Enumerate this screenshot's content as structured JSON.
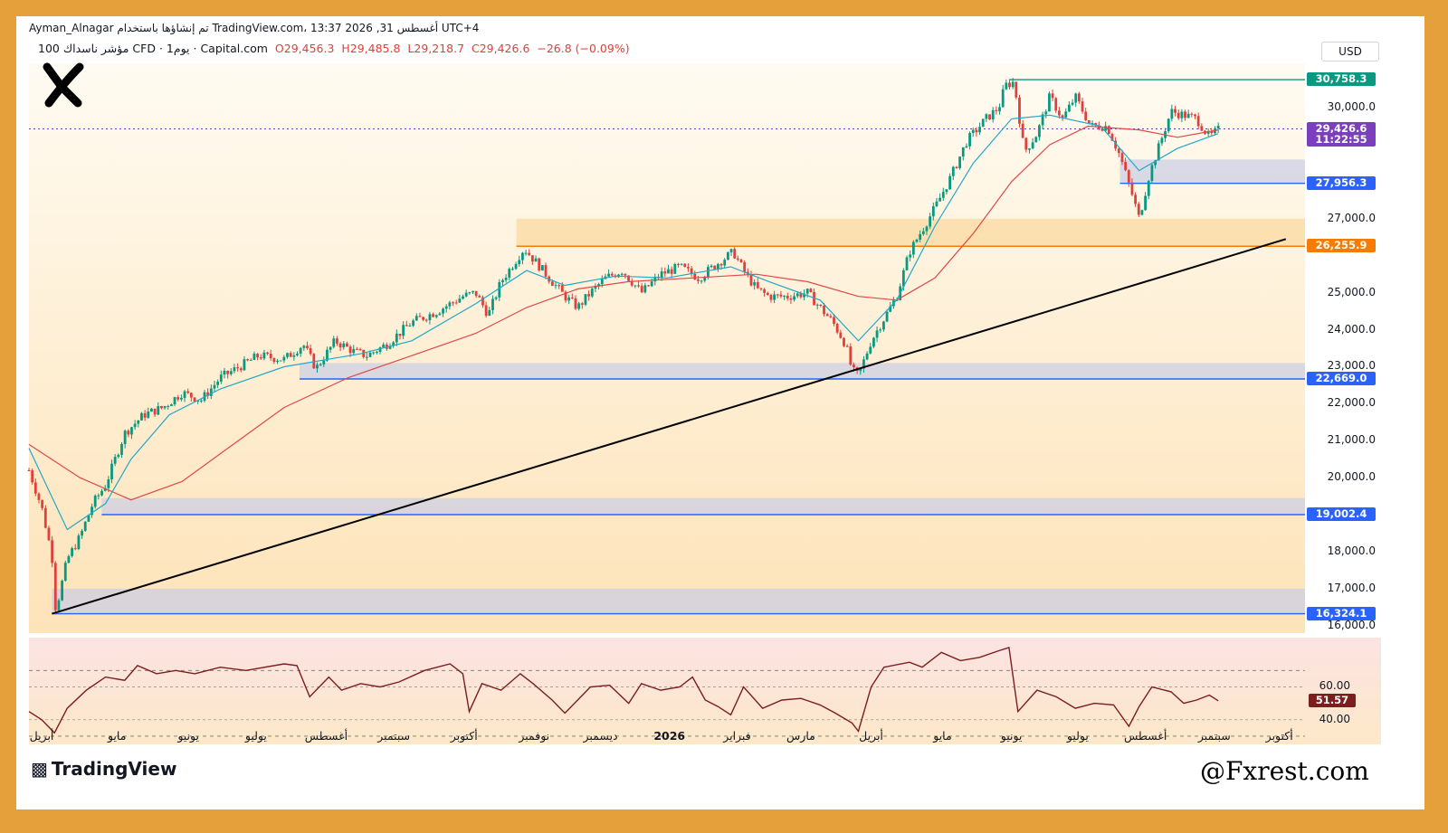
{
  "header": {
    "line1": "Ayman_Alnagar تم إنشاؤها باستخدام TradingView.com، 13:37 2026 ,31 أغسطس UTC+4",
    "symbol": "100 مؤشر ناسداك CFD · 1يوم · Capital.com",
    "open": "O29,456.3",
    "high": "H29,485.8",
    "low": "L29,218.7",
    "close": "C29,426.6",
    "change": "−26.8 (−0.09%)"
  },
  "currency": "USD",
  "footer": {
    "brand": "TradingView",
    "watermark": "@Fxrest.com"
  },
  "price_labels": [
    {
      "text": "30,758.3",
      "value": 30758.3,
      "color": "#089981"
    },
    {
      "text": "29,426.6",
      "value": 29426.6,
      "color": "#7b3fbd"
    },
    {
      "text": "11:22:55",
      "value": 29426.6,
      "color": "#7b3fbd",
      "sub": true
    },
    {
      "text": "27,956.3",
      "value": 27956.3,
      "color": "#2962ff"
    },
    {
      "text": "26,255.9",
      "value": 26255.9,
      "color": "#f57c00"
    },
    {
      "text": "22,669.0",
      "value": 22669.0,
      "color": "#2962ff"
    },
    {
      "text": "19,002.4",
      "value": 19002.4,
      "color": "#2962ff"
    },
    {
      "text": "16,324.1",
      "value": 16324.1,
      "color": "#2962ff"
    }
  ],
  "rsi_labels": [
    {
      "text": "60.00",
      "value": 60
    },
    {
      "text": "51.57",
      "value": 51.57,
      "badge": true
    },
    {
      "text": "40.00",
      "value": 40
    }
  ],
  "colors": {
    "up": "#089981",
    "down": "#e0403c",
    "ema_fast": "#22a7c9",
    "ema_slow": "#e04848",
    "rsi": "#7a1e1e",
    "frame": "#e5a03c"
  },
  "chart_data": {
    "type": "candlestick",
    "title": "100 مؤشر ناسداك CFD · 1يوم · Capital.com",
    "y_ticks": [
      16000,
      17000,
      18000,
      20000,
      21000,
      22000,
      23000,
      24000,
      25000,
      27000,
      30000
    ],
    "y_tick_labels": [
      "16,000.0",
      "17,000.0",
      "18,000.0",
      "20,000.0",
      "21,000.0",
      "22,000.0",
      "23,000.0",
      "24,000.0",
      "25,000.0",
      "27,000.0",
      "30,000.0"
    ],
    "ylim": [
      15800,
      31200
    ],
    "x_ticks": [
      {
        "label": "أبريل",
        "year_offset": 0,
        "t": 0.0
      },
      {
        "label": "مايو",
        "t": 0.059
      },
      {
        "label": "يونيو",
        "t": 0.115
      },
      {
        "label": "يوليو",
        "t": 0.168
      },
      {
        "label": "أغسطس",
        "t": 0.223
      },
      {
        "label": "سبتمبر",
        "t": 0.276
      },
      {
        "label": "أكتوبر",
        "t": 0.331
      },
      {
        "label": "نوفمبر",
        "t": 0.386
      },
      {
        "label": "ديسمبر",
        "t": 0.438
      },
      {
        "label": "2026",
        "t": 0.492,
        "bold": true
      },
      {
        "label": "فبراير",
        "t": 0.545
      },
      {
        "label": "مارس",
        "t": 0.595
      },
      {
        "label": "أبريل",
        "t": 0.65
      },
      {
        "label": "مايو",
        "t": 0.706
      },
      {
        "label": "يونيو",
        "t": 0.76
      },
      {
        "label": "يوليو",
        "t": 0.812
      },
      {
        "label": "أغسطس",
        "t": 0.865
      },
      {
        "label": "سبتمبر",
        "t": 0.919
      },
      {
        "label": "أكتوبر",
        "t": 0.97
      }
    ],
    "price_path": [
      [
        0.0,
        20200
      ],
      [
        0.01,
        19200
      ],
      [
        0.018,
        17900
      ],
      [
        0.021,
        16400
      ],
      [
        0.03,
        17800
      ],
      [
        0.04,
        18400
      ],
      [
        0.05,
        19300
      ],
      [
        0.06,
        19800
      ],
      [
        0.075,
        21200
      ],
      [
        0.09,
        21700
      ],
      [
        0.105,
        21900
      ],
      [
        0.12,
        22300
      ],
      [
        0.135,
        22100
      ],
      [
        0.15,
        22700
      ],
      [
        0.165,
        23000
      ],
      [
        0.18,
        23300
      ],
      [
        0.2,
        23200
      ],
      [
        0.215,
        23600
      ],
      [
        0.225,
        22950
      ],
      [
        0.24,
        23700
      ],
      [
        0.255,
        23400
      ],
      [
        0.265,
        23300
      ],
      [
        0.28,
        23600
      ],
      [
        0.3,
        24200
      ],
      [
        0.32,
        24500
      ],
      [
        0.34,
        24900
      ],
      [
        0.35,
        25000
      ],
      [
        0.36,
        24400
      ],
      [
        0.37,
        25300
      ],
      [
        0.38,
        25800
      ],
      [
        0.388,
        26200
      ],
      [
        0.398,
        25800
      ],
      [
        0.41,
        25300
      ],
      [
        0.42,
        24900
      ],
      [
        0.43,
        24600
      ],
      [
        0.44,
        25000
      ],
      [
        0.452,
        25400
      ],
      [
        0.465,
        25600
      ],
      [
        0.48,
        25000
      ],
      [
        0.495,
        25500
      ],
      [
        0.51,
        25700
      ],
      [
        0.525,
        25400
      ],
      [
        0.54,
        25800
      ],
      [
        0.552,
        26100
      ],
      [
        0.56,
        25600
      ],
      [
        0.57,
        25100
      ],
      [
        0.58,
        24900
      ],
      [
        0.595,
        24900
      ],
      [
        0.61,
        25000
      ],
      [
        0.62,
        24600
      ],
      [
        0.63,
        24200
      ],
      [
        0.64,
        23600
      ],
      [
        0.645,
        22900
      ],
      [
        0.65,
        22750
      ],
      [
        0.66,
        23700
      ],
      [
        0.67,
        24300
      ],
      [
        0.68,
        24900
      ],
      [
        0.69,
        26100
      ],
      [
        0.7,
        26700
      ],
      [
        0.71,
        27300
      ],
      [
        0.722,
        28100
      ],
      [
        0.735,
        29100
      ],
      [
        0.75,
        29700
      ],
      [
        0.76,
        30000
      ],
      [
        0.765,
        30600
      ],
      [
        0.772,
        30700
      ],
      [
        0.78,
        28800
      ],
      [
        0.79,
        29300
      ],
      [
        0.8,
        30300
      ],
      [
        0.81,
        29700
      ],
      [
        0.82,
        30300
      ],
      [
        0.832,
        29500
      ],
      [
        0.845,
        29500
      ],
      [
        0.855,
        28700
      ],
      [
        0.865,
        27600
      ],
      [
        0.87,
        27000
      ],
      [
        0.878,
        28200
      ],
      [
        0.885,
        28900
      ],
      [
        0.895,
        29900
      ],
      [
        0.905,
        29800
      ],
      [
        0.915,
        29700
      ],
      [
        0.925,
        29200
      ],
      [
        0.932,
        29400
      ]
    ],
    "ema_fast_path": [
      [
        0.0,
        20800
      ],
      [
        0.03,
        18600
      ],
      [
        0.06,
        19300
      ],
      [
        0.08,
        20500
      ],
      [
        0.11,
        21700
      ],
      [
        0.15,
        22400
      ],
      [
        0.2,
        23000
      ],
      [
        0.26,
        23350
      ],
      [
        0.3,
        23700
      ],
      [
        0.35,
        24700
      ],
      [
        0.39,
        25600
      ],
      [
        0.42,
        25200
      ],
      [
        0.46,
        25450
      ],
      [
        0.5,
        25400
      ],
      [
        0.55,
        25700
      ],
      [
        0.58,
        25300
      ],
      [
        0.62,
        24800
      ],
      [
        0.65,
        23700
      ],
      [
        0.68,
        24800
      ],
      [
        0.71,
        26800
      ],
      [
        0.74,
        28500
      ],
      [
        0.77,
        29700
      ],
      [
        0.8,
        29800
      ],
      [
        0.84,
        29500
      ],
      [
        0.87,
        28300
      ],
      [
        0.9,
        28900
      ],
      [
        0.932,
        29300
      ]
    ],
    "ema_slow_path": [
      [
        0.0,
        20900
      ],
      [
        0.04,
        20000
      ],
      [
        0.08,
        19400
      ],
      [
        0.12,
        19900
      ],
      [
        0.16,
        20900
      ],
      [
        0.2,
        21900
      ],
      [
        0.25,
        22700
      ],
      [
        0.3,
        23300
      ],
      [
        0.35,
        23900
      ],
      [
        0.39,
        24600
      ],
      [
        0.43,
        25100
      ],
      [
        0.47,
        25300
      ],
      [
        0.52,
        25400
      ],
      [
        0.57,
        25500
      ],
      [
        0.61,
        25300
      ],
      [
        0.65,
        24900
      ],
      [
        0.68,
        24800
      ],
      [
        0.71,
        25400
      ],
      [
        0.74,
        26600
      ],
      [
        0.77,
        28000
      ],
      [
        0.8,
        29000
      ],
      [
        0.83,
        29500
      ],
      [
        0.87,
        29400
      ],
      [
        0.9,
        29200
      ],
      [
        0.932,
        29400
      ]
    ],
    "rsi_path": [
      [
        0.0,
        45
      ],
      [
        0.01,
        40
      ],
      [
        0.02,
        32
      ],
      [
        0.03,
        47
      ],
      [
        0.045,
        58
      ],
      [
        0.06,
        66
      ],
      [
        0.075,
        64
      ],
      [
        0.085,
        73
      ],
      [
        0.1,
        68
      ],
      [
        0.115,
        70
      ],
      [
        0.13,
        68
      ],
      [
        0.15,
        72
      ],
      [
        0.17,
        70
      ],
      [
        0.2,
        74
      ],
      [
        0.21,
        73
      ],
      [
        0.22,
        54
      ],
      [
        0.235,
        66
      ],
      [
        0.245,
        58
      ],
      [
        0.26,
        62
      ],
      [
        0.275,
        60
      ],
      [
        0.29,
        63
      ],
      [
        0.31,
        70
      ],
      [
        0.33,
        74
      ],
      [
        0.34,
        68
      ],
      [
        0.345,
        45
      ],
      [
        0.355,
        62
      ],
      [
        0.37,
        58
      ],
      [
        0.385,
        68
      ],
      [
        0.395,
        62
      ],
      [
        0.41,
        52
      ],
      [
        0.42,
        44
      ],
      [
        0.43,
        52
      ],
      [
        0.44,
        60
      ],
      [
        0.455,
        61
      ],
      [
        0.47,
        50
      ],
      [
        0.48,
        62
      ],
      [
        0.495,
        58
      ],
      [
        0.51,
        60
      ],
      [
        0.52,
        66
      ],
      [
        0.53,
        52
      ],
      [
        0.54,
        48
      ],
      [
        0.55,
        43
      ],
      [
        0.56,
        60
      ],
      [
        0.575,
        47
      ],
      [
        0.59,
        52
      ],
      [
        0.605,
        53
      ],
      [
        0.62,
        49
      ],
      [
        0.632,
        44
      ],
      [
        0.645,
        38
      ],
      [
        0.65,
        33
      ],
      [
        0.66,
        60
      ],
      [
        0.67,
        72
      ],
      [
        0.69,
        75
      ],
      [
        0.7,
        72
      ],
      [
        0.715,
        81
      ],
      [
        0.73,
        76
      ],
      [
        0.745,
        78
      ],
      [
        0.76,
        82
      ],
      [
        0.768,
        84
      ],
      [
        0.775,
        45
      ],
      [
        0.79,
        58
      ],
      [
        0.805,
        54
      ],
      [
        0.82,
        47
      ],
      [
        0.835,
        50
      ],
      [
        0.85,
        49
      ],
      [
        0.862,
        36
      ],
      [
        0.87,
        48
      ],
      [
        0.88,
        60
      ],
      [
        0.895,
        57
      ],
      [
        0.905,
        50
      ],
      [
        0.915,
        52
      ],
      [
        0.925,
        55
      ],
      [
        0.932,
        51.57
      ]
    ],
    "rsi_ylim": [
      25,
      90
    ],
    "zones": [
      {
        "type": "supply",
        "from": 0.382,
        "to": 1.0,
        "low": 26255.9,
        "high": 27000
      },
      {
        "type": "demand",
        "from": 0.855,
        "to": 1.0,
        "low": 27956.3,
        "high": 28600
      },
      {
        "type": "demand",
        "from": 0.212,
        "to": 1.0,
        "low": 22669.0,
        "high": 23100
      },
      {
        "type": "demand",
        "from": 0.057,
        "to": 1.0,
        "low": 19002.4,
        "high": 19450
      },
      {
        "type": "demand",
        "from": 0.018,
        "to": 1.0,
        "low": 16324.1,
        "high": 17000
      }
    ],
    "trendline": {
      "from": [
        0.018,
        16324.1
      ],
      "to": [
        0.985,
        26450
      ]
    }
  }
}
